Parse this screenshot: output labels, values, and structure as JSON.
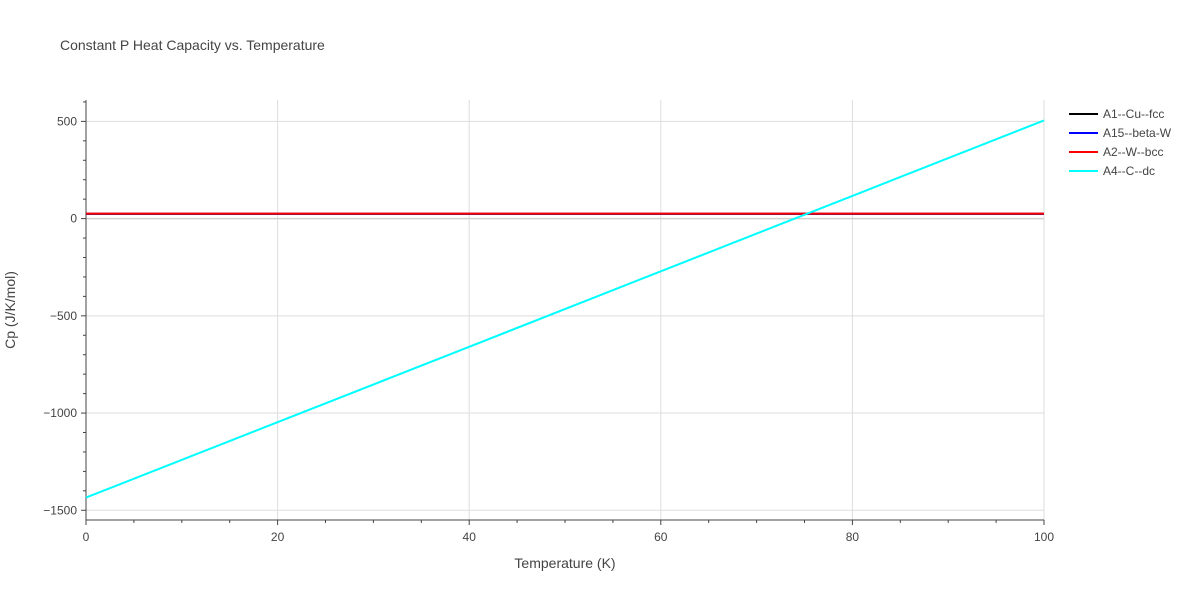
{
  "chart_data": {
    "type": "line",
    "title": "Constant P Heat Capacity vs. Temperature",
    "xlabel": "Temperature (K)",
    "ylabel": "Cp (J/K/mol)",
    "xlim": [
      0,
      100
    ],
    "ylim": [
      -1550,
      610
    ],
    "xticks": [
      0,
      20,
      40,
      60,
      80,
      100
    ],
    "xtick_labels": [
      "0",
      "20",
      "40",
      "60",
      "80",
      "100"
    ],
    "yticks": [
      -1500,
      -1000,
      -500,
      0,
      500
    ],
    "ytick_labels": [
      "−1500",
      "−1000",
      "−500",
      "0",
      "500"
    ],
    "grid": true,
    "legend_position": "right",
    "series": [
      {
        "name": "A1--Cu--fcc",
        "color": "#000000",
        "x": [
          0,
          20,
          40,
          60,
          80,
          100
        ],
        "y": [
          24,
          24,
          24,
          24,
          24,
          24
        ]
      },
      {
        "name": "A15--beta-W",
        "color": "#0000ff",
        "x": [
          0,
          20,
          40,
          60,
          80,
          100
        ],
        "y": [
          25,
          25,
          25,
          25,
          25,
          25
        ]
      },
      {
        "name": "A2--W--bcc",
        "color": "#ff0000",
        "x": [
          0,
          20,
          40,
          60,
          80,
          100
        ],
        "y": [
          26,
          26,
          26,
          26,
          26,
          26
        ]
      },
      {
        "name": "A4--C--dc",
        "color": "#00ffff",
        "x": [
          0,
          20,
          40,
          60,
          80,
          100
        ],
        "y": [
          -1435,
          -1047,
          -659,
          -271,
          117,
          505
        ]
      }
    ]
  }
}
